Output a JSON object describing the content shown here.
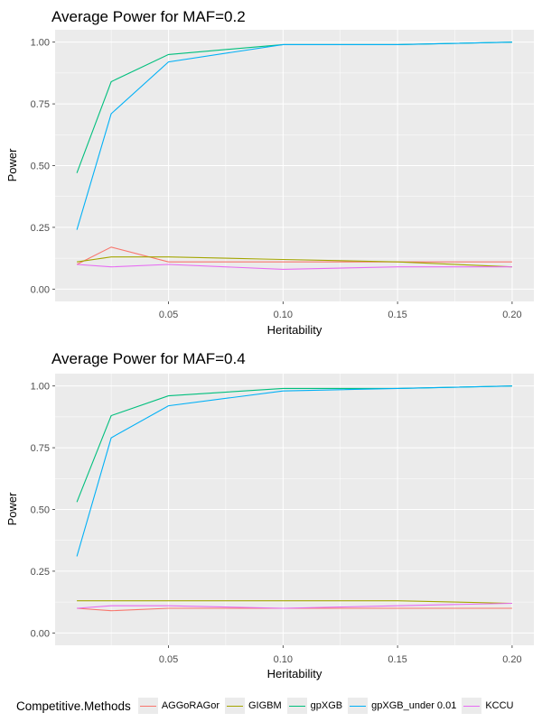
{
  "chart_data": [
    {
      "type": "line",
      "title": "Average Power for MAF=0.2",
      "xlabel": "Heritability",
      "ylabel": "Power",
      "x": [
        0.01,
        0.025,
        0.05,
        0.1,
        0.15,
        0.2
      ],
      "xlim": [
        0.0005,
        0.2095
      ],
      "ylim": [
        -0.05,
        1.05
      ],
      "xticks": [
        0.05,
        0.1,
        0.15,
        0.2
      ],
      "xtick_labels": [
        "0.05",
        "0.10",
        "0.15",
        "0.20"
      ],
      "yticks": [
        0,
        0.25,
        0.5,
        0.75,
        1.0
      ],
      "ytick_labels": [
        "0.00",
        "0.25",
        "0.50",
        "0.75",
        "1.00"
      ],
      "grid": true,
      "series": [
        {
          "name": "AGGoRAGor",
          "color": "#F8766D",
          "values": [
            0.1,
            0.17,
            0.11,
            0.11,
            0.11,
            0.11
          ]
        },
        {
          "name": "GIGBM",
          "color": "#A3A500",
          "values": [
            0.11,
            0.13,
            0.13,
            0.12,
            0.11,
            0.09
          ]
        },
        {
          "name": "gpXGB",
          "color": "#00BF7D",
          "values": [
            0.47,
            0.84,
            0.95,
            0.99,
            0.99,
            1.0
          ]
        },
        {
          "name": "gpXGB_under 0.01",
          "color": "#00B0F6",
          "values": [
            0.24,
            0.71,
            0.92,
            0.99,
            0.99,
            1.0
          ]
        },
        {
          "name": "KCCU",
          "color": "#E76BF3",
          "values": [
            0.1,
            0.09,
            0.1,
            0.08,
            0.09,
            0.09
          ]
        }
      ]
    },
    {
      "type": "line",
      "title": "Average Power for MAF=0.4",
      "xlabel": "Heritability",
      "ylabel": "Power",
      "x": [
        0.01,
        0.025,
        0.05,
        0.1,
        0.15,
        0.2
      ],
      "xlim": [
        0.0005,
        0.2095
      ],
      "ylim": [
        -0.05,
        1.05
      ],
      "xticks": [
        0.05,
        0.1,
        0.15,
        0.2
      ],
      "xtick_labels": [
        "0.05",
        "0.10",
        "0.15",
        "0.20"
      ],
      "yticks": [
        0,
        0.25,
        0.5,
        0.75,
        1.0
      ],
      "ytick_labels": [
        "0.00",
        "0.25",
        "0.50",
        "0.75",
        "1.00"
      ],
      "grid": true,
      "series": [
        {
          "name": "AGGoRAGor",
          "color": "#F8766D",
          "values": [
            0.1,
            0.09,
            0.1,
            0.1,
            0.1,
            0.1
          ]
        },
        {
          "name": "GIGBM",
          "color": "#A3A500",
          "values": [
            0.13,
            0.13,
            0.13,
            0.13,
            0.13,
            0.12
          ]
        },
        {
          "name": "gpXGB",
          "color": "#00BF7D",
          "values": [
            0.53,
            0.88,
            0.96,
            0.99,
            0.99,
            1.0
          ]
        },
        {
          "name": "gpXGB_under 0.01",
          "color": "#00B0F6",
          "values": [
            0.31,
            0.79,
            0.92,
            0.98,
            0.99,
            1.0
          ]
        },
        {
          "name": "KCCU",
          "color": "#E76BF3",
          "values": [
            0.1,
            0.11,
            0.11,
            0.1,
            0.11,
            0.12
          ]
        }
      ]
    }
  ],
  "legend": {
    "title": "Competitive.Methods",
    "position": "bottom",
    "items": [
      {
        "label": "AGGoRAGor",
        "color": "#F8766D"
      },
      {
        "label": "GIGBM",
        "color": "#A3A500"
      },
      {
        "label": "gpXGB",
        "color": "#00BF7D"
      },
      {
        "label": "gpXGB_under 0.01",
        "color": "#00B0F6"
      },
      {
        "label": "KCCU",
        "color": "#E76BF3"
      }
    ]
  }
}
